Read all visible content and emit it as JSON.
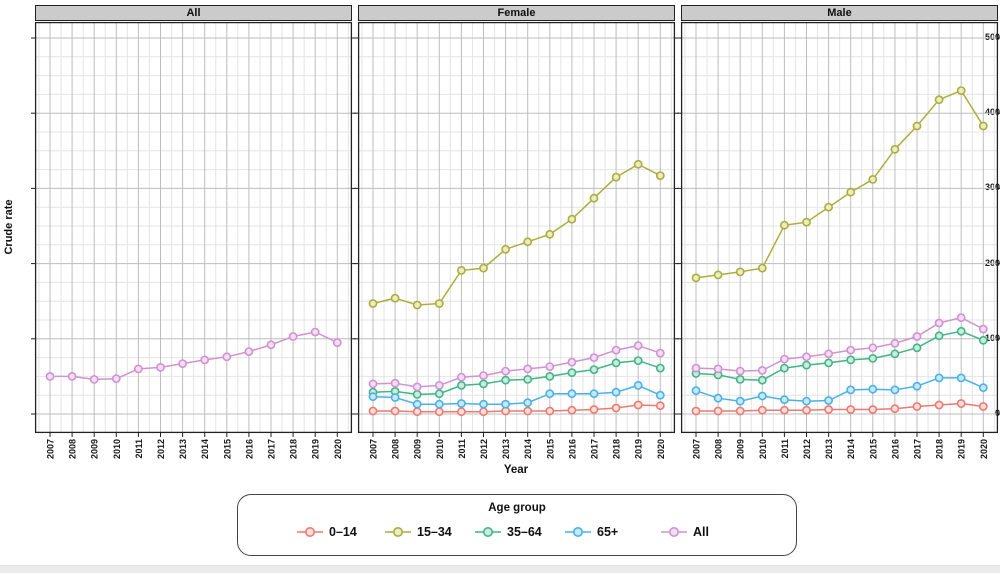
{
  "chart_data": {
    "type": "line",
    "title": "",
    "xlabel": "Year",
    "ylabel": "Crude rate",
    "x": [
      2007,
      2008,
      2009,
      2010,
      2011,
      2012,
      2013,
      2014,
      2015,
      2016,
      2017,
      2018,
      2019,
      2020
    ],
    "y_ticks": [
      0,
      100,
      200,
      300,
      400,
      500
    ],
    "y_minor_step": 25,
    "ylim": [
      0,
      520
    ],
    "grid": "major-and-minor",
    "legend": {
      "title": "Age group",
      "position": "bottom",
      "entries": [
        {
          "label": "0–14",
          "color": "#ee796f",
          "marker_fill": "#fbdfdc"
        },
        {
          "label": "15–34",
          "color": "#abae3a",
          "marker_fill": "#eaecc5"
        },
        {
          "label": "35–64",
          "color": "#40b587",
          "marker_fill": "#cdebdd"
        },
        {
          "label": "65+",
          "color": "#48b2e8",
          "marker_fill": "#c9e7f7"
        },
        {
          "label": "All",
          "color": "#d092d1",
          "marker_fill": "#f3ddf3"
        }
      ]
    },
    "facets": [
      {
        "label": "All",
        "series": [
          {
            "name": "All",
            "values": [
              50,
              50,
              46,
              47,
              60,
              62,
              67,
              72,
              76,
              83,
              92,
              103,
              109,
              95
            ]
          }
        ]
      },
      {
        "label": "Female",
        "series": [
          {
            "name": "0–14",
            "values": [
              4,
              4,
              3,
              3,
              3,
              3,
              4,
              4,
              4,
              5,
              6,
              8,
              12,
              11
            ]
          },
          {
            "name": "15–34",
            "values": [
              147,
              154,
              145,
              147,
              191,
              194,
              219,
              229,
              239,
              259,
              287,
              315,
              332,
              317
            ]
          },
          {
            "name": "35–64",
            "values": [
              29,
              30,
              26,
              27,
              38,
              40,
              45,
              46,
              50,
              55,
              59,
              68,
              71,
              61
            ]
          },
          {
            "name": "65+",
            "values": [
              23,
              22,
              13,
              13,
              14,
              13,
              13,
              15,
              27,
              27,
              27,
              29,
              38,
              25
            ]
          },
          {
            "name": "All",
            "values": [
              40,
              41,
              36,
              38,
              49,
              51,
              57,
              60,
              63,
              69,
              75,
              85,
              91,
              81
            ]
          }
        ]
      },
      {
        "label": "Male",
        "series": [
          {
            "name": "0–14",
            "values": [
              4,
              4,
              4,
              5,
              5,
              5,
              6,
              6,
              6,
              7,
              10,
              12,
              14,
              10
            ]
          },
          {
            "name": "15–34",
            "values": [
              181,
              185,
              189,
              194,
              251,
              255,
              275,
              295,
              312,
              352,
              383,
              418,
              430,
              383
            ]
          },
          {
            "name": "35–64",
            "values": [
              54,
              52,
              46,
              45,
              61,
              65,
              68,
              72,
              74,
              80,
              88,
              104,
              110,
              98
            ]
          },
          {
            "name": "65+",
            "values": [
              31,
              21,
              17,
              24,
              19,
              17,
              18,
              32,
              33,
              32,
              37,
              48,
              48,
              35
            ]
          },
          {
            "name": "All",
            "values": [
              61,
              60,
              57,
              58,
              73,
              76,
              80,
              85,
              88,
              94,
              103,
              121,
              128,
              113
            ]
          }
        ]
      }
    ]
  }
}
